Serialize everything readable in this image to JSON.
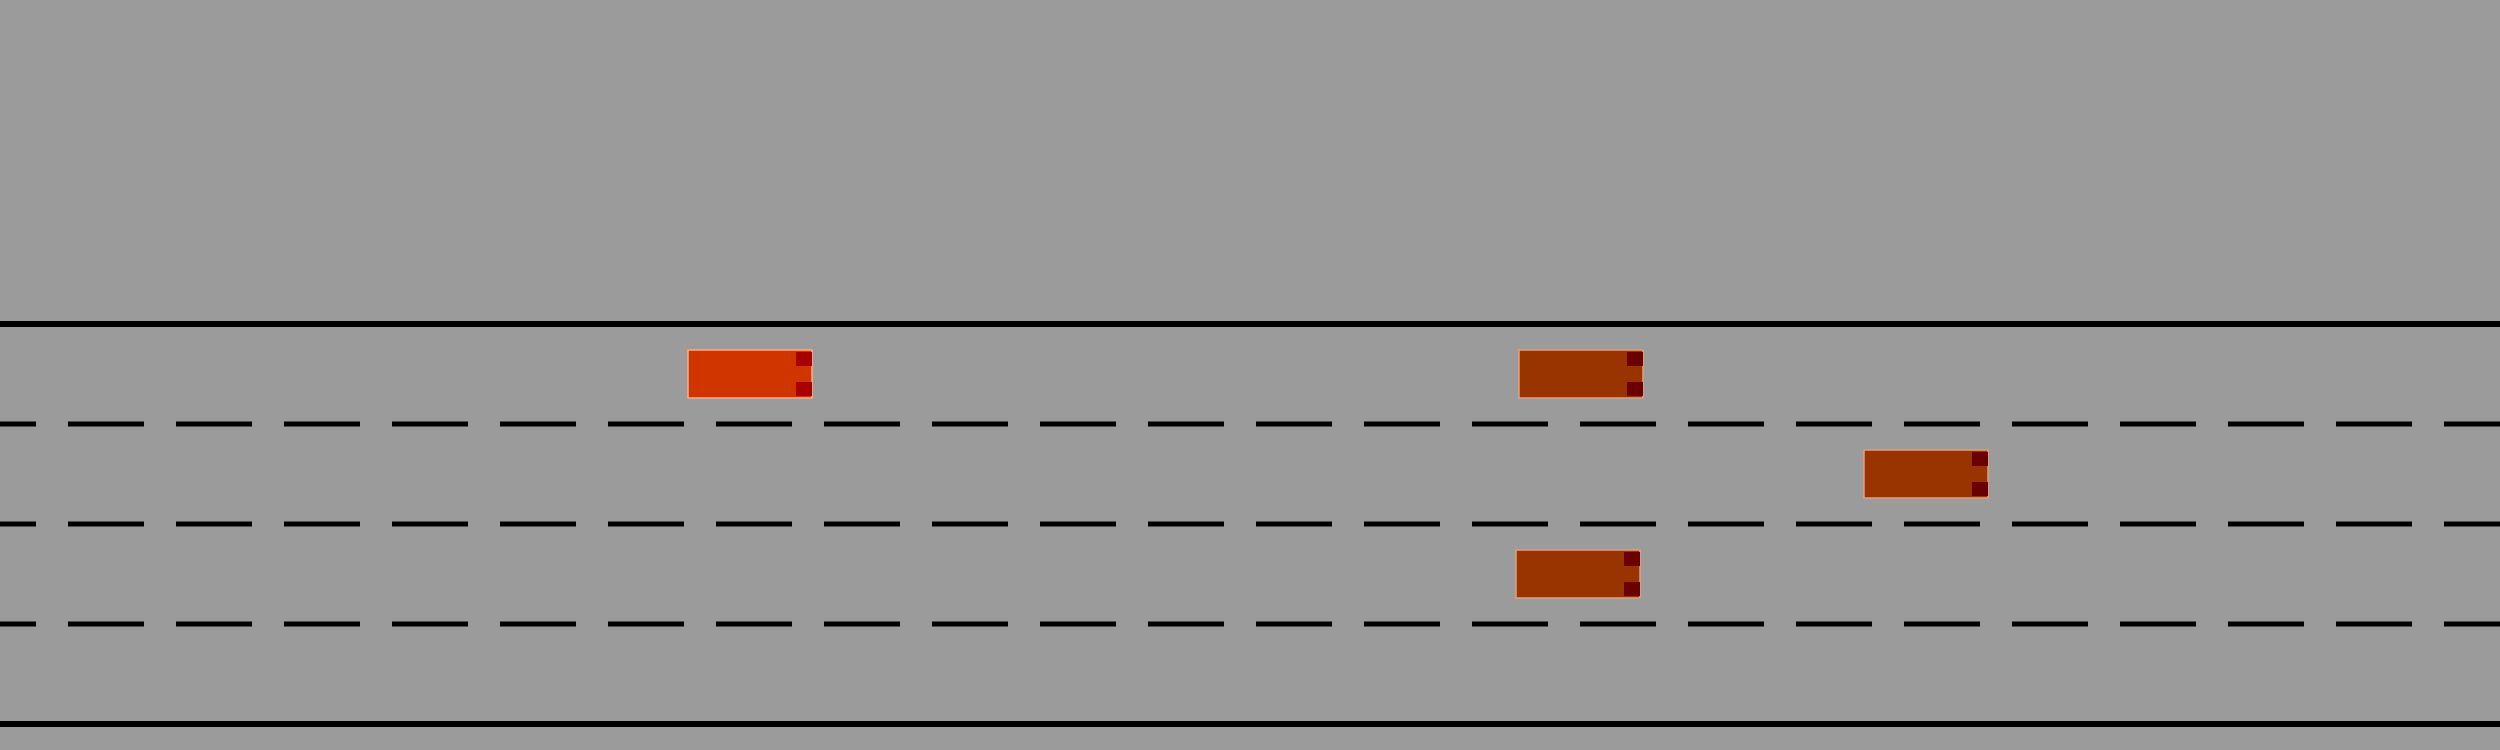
{
  "scene": {
    "type": "highway-driving-simulation",
    "background_color": "#9b9b9b",
    "lane_count": 4,
    "road_edge_color": "#000000",
    "lane_marking_color": "#000000",
    "lane_marking_style": "dashed"
  },
  "vehicles": [
    {
      "role": "ego",
      "lane": 1,
      "body_color": "#d03500",
      "outline_color": "#ffaa88",
      "light_color": "#a80000"
    },
    {
      "role": "other",
      "lane": 1,
      "body_color": "#993300",
      "outline_color": "#e0a080",
      "light_color": "#6a0000"
    },
    {
      "role": "other",
      "lane": 2,
      "body_color": "#993300",
      "outline_color": "#e0a080",
      "light_color": "#6a0000"
    },
    {
      "role": "other",
      "lane": 3,
      "body_color": "#993300",
      "outline_color": "#e0a080",
      "light_color": "#6a0000"
    }
  ]
}
